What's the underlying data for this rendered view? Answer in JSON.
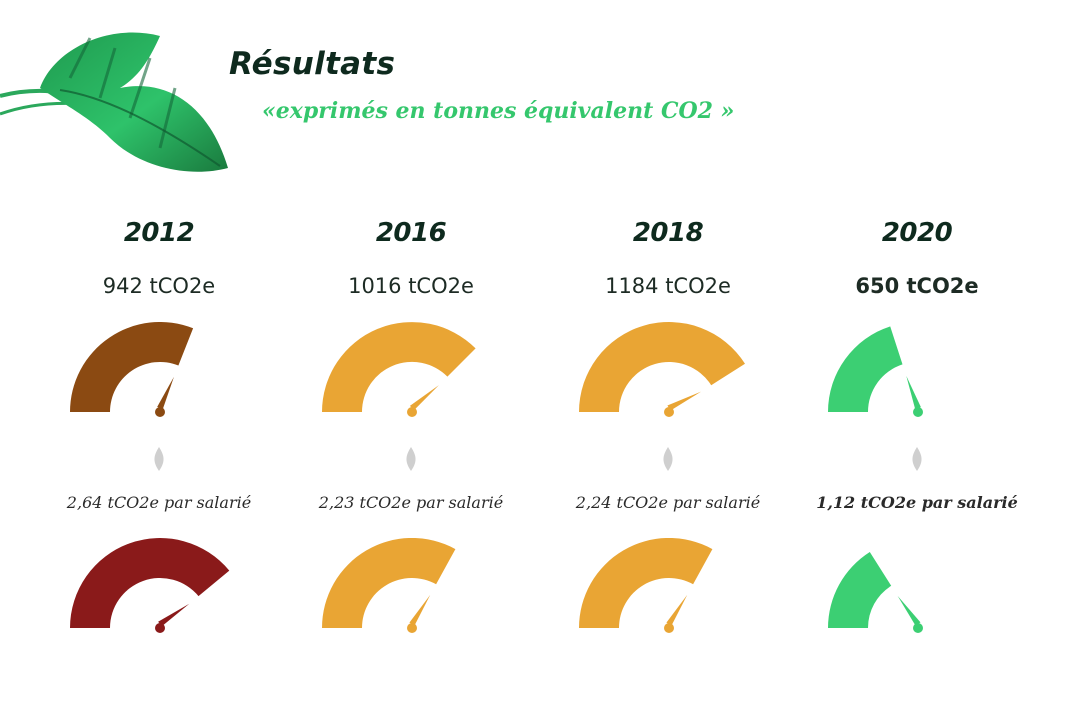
{
  "header": {
    "title": "Résultats",
    "subtitle": "«exprimés en tonnes équivalent CO2 »"
  },
  "colors": {
    "brand_green": "#35c76d",
    "title_dark": "#0e2a1e",
    "brown": "#8b4a12",
    "orange": "#e9a534",
    "red": "#8a1a1a",
    "green": "#3ccf73"
  },
  "years": [
    {
      "year": "2012",
      "total": "942 tCO2e",
      "per_employee": "2,64 tCO2e par salarié",
      "total_level": 0.62,
      "per_level": 0.78,
      "total_color": "brown",
      "per_color": "red",
      "highlight": false
    },
    {
      "year": "2016",
      "total": "1016 tCO2e",
      "per_employee": "2,23 tCO2e par salarié",
      "total_level": 0.75,
      "per_level": 0.66,
      "total_color": "orange",
      "per_color": "orange",
      "highlight": false
    },
    {
      "year": "2018",
      "total": "1184 tCO2e",
      "per_employee": "2,24 tCO2e par salarié",
      "total_level": 0.82,
      "per_level": 0.66,
      "total_color": "orange",
      "per_color": "orange",
      "highlight": false
    },
    {
      "year": "2020",
      "total": "650 tCO2e",
      "per_employee": "1,12 tCO2e par salarié",
      "total_level": 0.4,
      "per_level": 0.32,
      "total_color": "green",
      "per_color": "green",
      "highlight": true
    }
  ]
}
